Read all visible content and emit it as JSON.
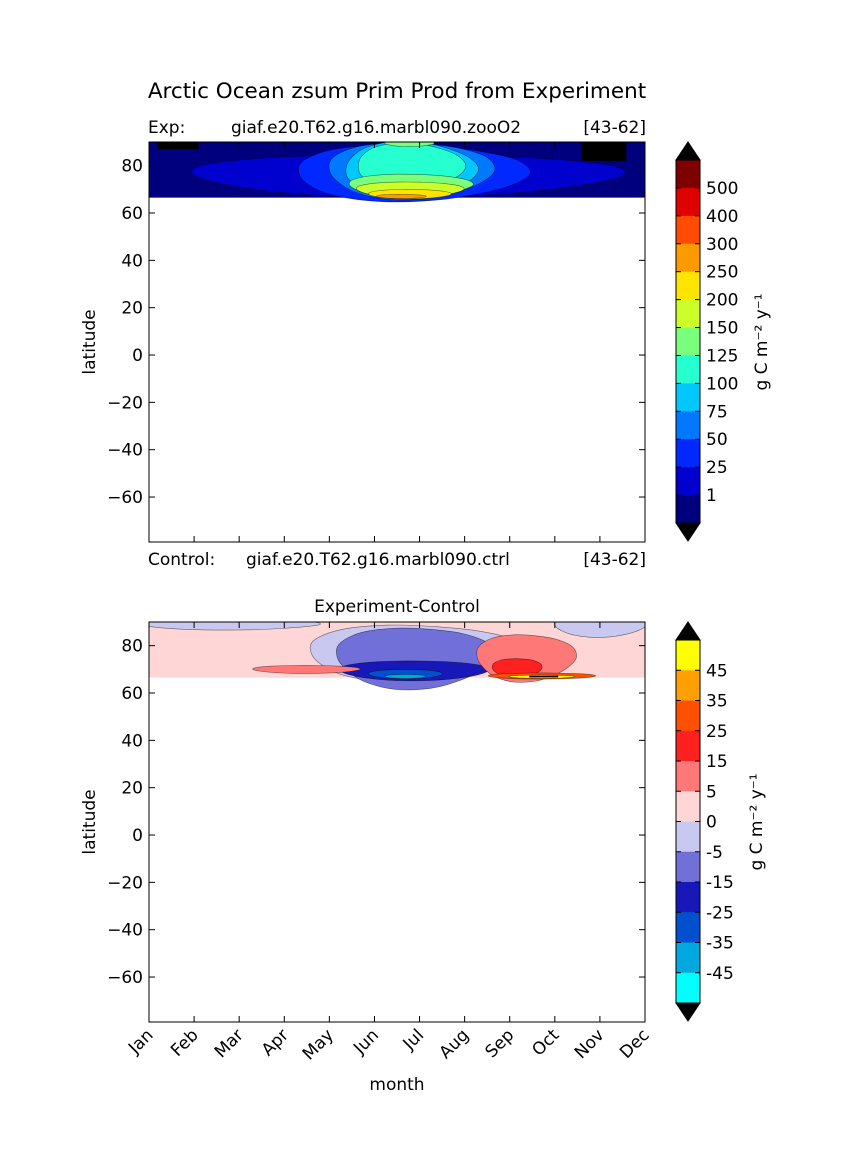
{
  "figure": {
    "title": "Arctic Ocean zsum Prim Prod from Experiment"
  },
  "chart_data": [
    {
      "type": "heatmap",
      "panel": "experiment",
      "exp_label": "Exp:",
      "exp_case": "giaf.e20.T62.g16.marbl090.zooO2",
      "exp_years": "[43-62]",
      "control_label": "Control:",
      "control_case": "giaf.e20.T62.g16.marbl090.ctrl",
      "control_years": "[43-62]",
      "ylabel": "latitude",
      "xlim": [
        0,
        11
      ],
      "ylim": [
        -79,
        90
      ],
      "yticks": [
        80,
        60,
        40,
        20,
        0,
        -20,
        -40,
        -60
      ],
      "xticks": [
        "Jan",
        "Feb",
        "Mar",
        "Apr",
        "May",
        "Jun",
        "Jul",
        "Aug",
        "Sep",
        "Oct",
        "Nov",
        "Dec"
      ],
      "data_lat_range": [
        66.5,
        90
      ],
      "colorbar": {
        "label": "g C m⁻² y⁻¹",
        "levels": [
          1,
          25,
          50,
          75,
          100,
          125,
          150,
          200,
          250,
          300,
          400,
          500
        ],
        "tick_labels": [
          "500",
          "400",
          "300",
          "250",
          "200",
          "150",
          "125",
          "100",
          "75",
          "50",
          "25",
          "1"
        ],
        "colors": [
          "#00007f",
          "#0000cf",
          "#0028ff",
          "#0078ff",
          "#00c8ff",
          "#26ffd0",
          "#7aff7d",
          "#ccff2a",
          "#ffe400",
          "#ff9900",
          "#ff4c00",
          "#e10000",
          "#7f0000"
        ],
        "under_color": "#00007f",
        "over_color": "#000000"
      },
      "features": [
        {
          "month": 0.2,
          "lat": 88.5,
          "level_index": 12
        },
        {
          "month": 10.5,
          "lat": 86,
          "level_index": 12
        },
        {
          "month": 5.8,
          "lat": 71,
          "level_index": 8
        },
        {
          "month": 5.8,
          "lat": 67,
          "level_index": 10
        }
      ]
    },
    {
      "type": "heatmap",
      "panel": "difference",
      "title": "Experiment-Control",
      "xlabel": "month",
      "ylabel": "latitude",
      "xlim": [
        0,
        11
      ],
      "ylim": [
        -79,
        90
      ],
      "yticks": [
        80,
        60,
        40,
        20,
        0,
        -20,
        -40,
        -60
      ],
      "xticks": [
        "Jan",
        "Feb",
        "Mar",
        "Apr",
        "May",
        "Jun",
        "Jul",
        "Aug",
        "Sep",
        "Oct",
        "Nov",
        "Dec"
      ],
      "data_lat_range": [
        66.5,
        90
      ],
      "colorbar": {
        "label": "g C m⁻² y⁻¹",
        "levels": [
          -45,
          -35,
          -25,
          -15,
          -5,
          0,
          5,
          15,
          25,
          35,
          45
        ],
        "tick_labels": [
          "45",
          "35",
          "25",
          "15",
          "5",
          "0",
          "-5",
          "-15",
          "-25",
          "-35",
          "-45"
        ],
        "colors": [
          "#00ffff",
          "#00a8e0",
          "#0050d0",
          "#1818b8",
          "#7070d8",
          "#c8c8f0",
          "#ffd6d6",
          "#ff7878",
          "#ff2020",
          "#ff5000",
          "#ffa000",
          "#ffff00"
        ],
        "under_color": "#00ffff",
        "over_color": "#000000"
      },
      "features": [
        {
          "month": 6.1,
          "lat": 68,
          "level_index": 3
        },
        {
          "month": 8.4,
          "lat": 74,
          "level_index": 8
        },
        {
          "month": 8.9,
          "lat": 67,
          "level_index": 10
        }
      ]
    }
  ]
}
